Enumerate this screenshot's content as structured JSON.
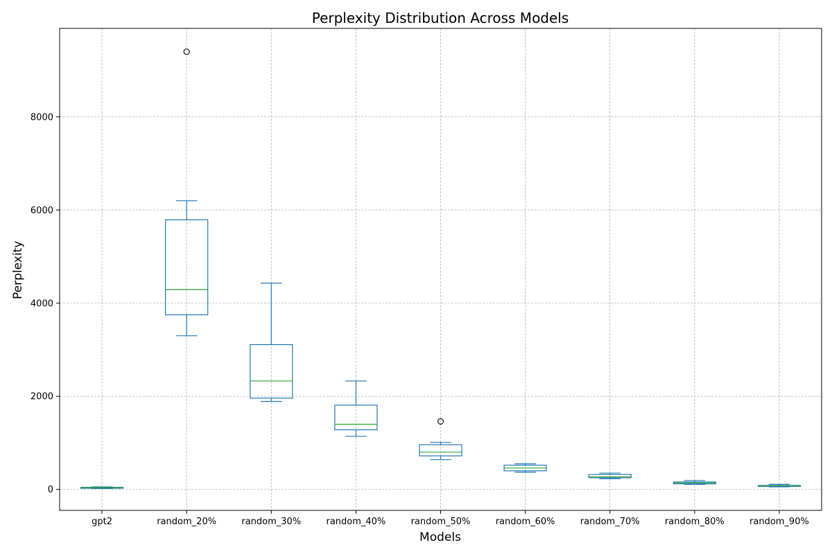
{
  "chart_data": {
    "type": "box",
    "title": "Perplexity Distribution Across Models",
    "xlabel": "Models",
    "ylabel": "Perplexity",
    "ylim": [
      -450,
      9900
    ],
    "yticks": [
      0,
      2000,
      4000,
      6000,
      8000
    ],
    "grid": true,
    "colors": {
      "box": "#1f77b4",
      "median": "#2ca02c",
      "flier": "#000000"
    },
    "categories": [
      "gpt2",
      "random_20%",
      "random_30%",
      "random_40%",
      "random_50%",
      "random_60%",
      "random_70%",
      "random_80%",
      "random_90%"
    ],
    "boxes": [
      {
        "min": 20,
        "q1": 25,
        "median": 35,
        "q3": 45,
        "max": 55,
        "fliers": []
      },
      {
        "min": 3300,
        "q1": 3750,
        "median": 4290,
        "q3": 5790,
        "max": 6200,
        "fliers": [
          9400
        ]
      },
      {
        "min": 1890,
        "q1": 1960,
        "median": 2330,
        "q3": 3110,
        "max": 4430,
        "fliers": []
      },
      {
        "min": 1140,
        "q1": 1280,
        "median": 1400,
        "q3": 1810,
        "max": 2330,
        "fliers": []
      },
      {
        "min": 640,
        "q1": 720,
        "median": 800,
        "q3": 960,
        "max": 1010,
        "fliers": [
          1460
        ]
      },
      {
        "min": 370,
        "q1": 400,
        "median": 460,
        "q3": 520,
        "max": 550,
        "fliers": []
      },
      {
        "min": 230,
        "q1": 250,
        "median": 270,
        "q3": 320,
        "max": 350,
        "fliers": []
      },
      {
        "min": 110,
        "q1": 120,
        "median": 140,
        "q3": 160,
        "max": 190,
        "fliers": []
      },
      {
        "min": 55,
        "q1": 65,
        "median": 75,
        "q3": 85,
        "max": 110,
        "fliers": []
      }
    ]
  }
}
